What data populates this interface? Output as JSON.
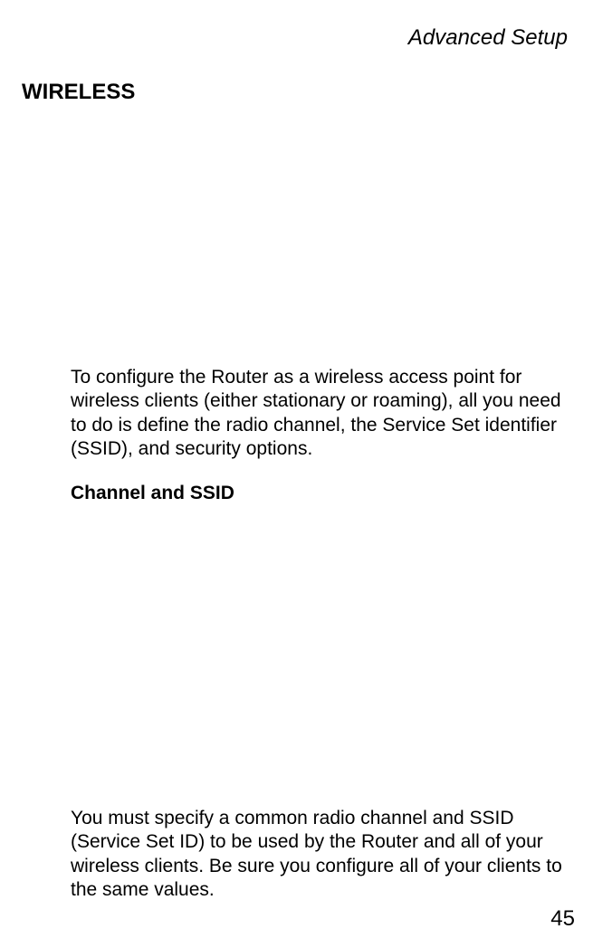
{
  "header": {
    "title": "Advanced Setup"
  },
  "section": {
    "heading": "WIRELESS"
  },
  "body": {
    "paragraph1": "To configure the Router as a wireless access point for wireless clients (either stationary or roaming), all you need to do is define the radio channel, the Service Set identifier (SSID), and security options.",
    "subheading": "Channel and SSID",
    "paragraph2": "You must specify a common radio channel and SSID (Service Set ID) to be used by the Router and all of your wireless clients. Be sure you configure all of your clients to the same values."
  },
  "footer": {
    "page_number": "45"
  },
  "style": {
    "background_color": "#ffffff",
    "text_color": "#000000",
    "header_fontsize": 24,
    "heading_fontsize": 24,
    "body_fontsize": 21,
    "pagenum_fontsize": 24
  }
}
